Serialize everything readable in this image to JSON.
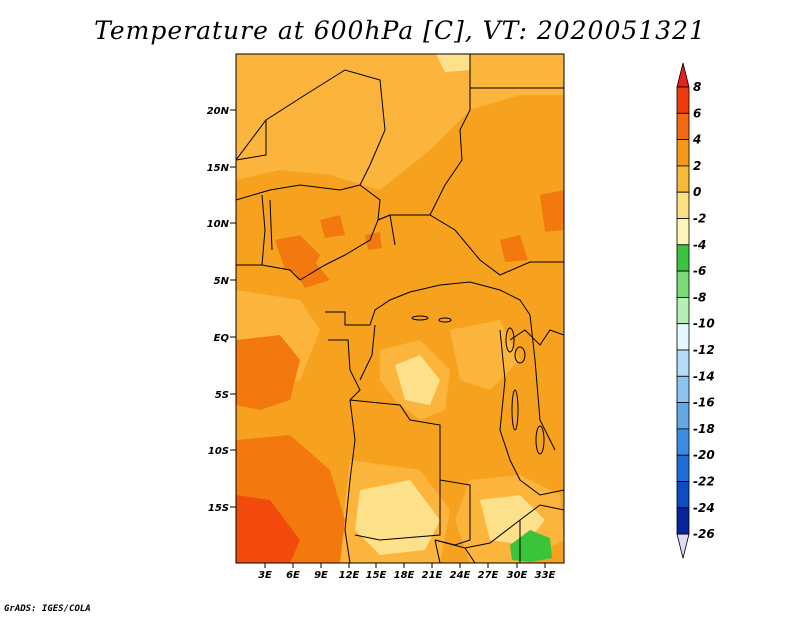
{
  "title": "Temperature at 600hPa [C], VT: 2020051321",
  "credit": "GrADS: IGES/COLA",
  "map": {
    "lat_labels": [
      "20N",
      "15N",
      "10N",
      "5N",
      "EQ",
      "5S",
      "10S",
      "15S"
    ],
    "lon_labels": [
      "3E",
      "6E",
      "9E",
      "12E",
      "15E",
      "18E",
      "21E",
      "24E",
      "27E",
      "30E",
      "33E"
    ]
  },
  "colorbar": {
    "levels": [
      "8",
      "6",
      "4",
      "2",
      "0",
      "-2",
      "-4",
      "-6",
      "-8",
      "-10",
      "-12",
      "-14",
      "-16",
      "-18",
      "-20",
      "-22",
      "-24",
      "-26"
    ],
    "colors": [
      "#e8211e",
      "#f03c0c",
      "#f56a10",
      "#f59a18",
      "#f8b838",
      "#fbe080",
      "#fdf5b8",
      "#3cc33c",
      "#78dc78",
      "#b4f0b4",
      "#e6f8ff",
      "#b4dcf8",
      "#8cc4f0",
      "#64a8ea",
      "#3c8ce4",
      "#1e6ed8",
      "#0e4cc4",
      "#06249c",
      "#000064",
      "#dcdcf8"
    ]
  },
  "palette": {
    "base": "#f7a21e",
    "light": "#fbb53c",
    "pale": "#fde08a",
    "warm": "#f3790f",
    "hot": "#f14a0c",
    "green": "#3cc33c"
  }
}
